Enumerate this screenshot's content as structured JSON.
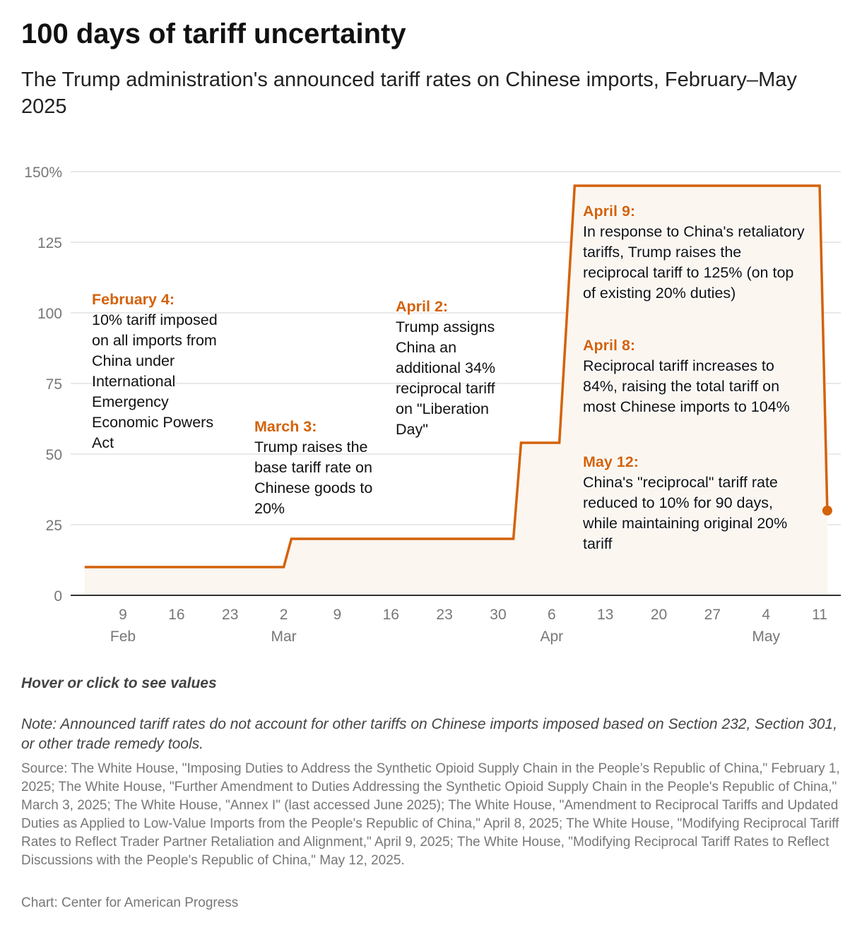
{
  "title": "100 days of tariff uncertainty",
  "subtitle": "The Trump administration's announced tariff rates on Chinese imports, February–May 2025",
  "chart_data": {
    "type": "line",
    "step": true,
    "area_fill": true,
    "colors": {
      "line": "#d4620a",
      "fill": "#fbf6f0",
      "grid": "#e2e2e2",
      "axis": "#333333",
      "tick": "#777777"
    },
    "x": [
      "2025-02-04",
      "2025-03-02",
      "2025-03-03",
      "2025-04-01",
      "2025-04-02",
      "2025-04-07",
      "2025-04-09",
      "2025-05-11",
      "2025-05-12"
    ],
    "y": [
      10,
      10,
      20,
      20,
      54,
      54,
      145,
      145,
      30
    ],
    "ylim": [
      0,
      150
    ],
    "yticks": [
      {
        "v": 0,
        "label": "0"
      },
      {
        "v": 25,
        "label": "25"
      },
      {
        "v": 50,
        "label": "50"
      },
      {
        "v": 75,
        "label": "75"
      },
      {
        "v": 100,
        "label": "100"
      },
      {
        "v": 125,
        "label": "125"
      },
      {
        "v": 150,
        "label": "150%"
      }
    ],
    "xlim": [
      "2025-02-04",
      "2025-05-12"
    ],
    "xticks": [
      {
        "date": "2025-02-09",
        "label": "9",
        "month": "Feb"
      },
      {
        "date": "2025-02-16",
        "label": "16"
      },
      {
        "date": "2025-02-23",
        "label": "23"
      },
      {
        "date": "2025-03-02",
        "label": "2",
        "month": "Mar"
      },
      {
        "date": "2025-03-09",
        "label": "9"
      },
      {
        "date": "2025-03-16",
        "label": "16"
      },
      {
        "date": "2025-03-23",
        "label": "23"
      },
      {
        "date": "2025-03-30",
        "label": "30"
      },
      {
        "date": "2025-04-06",
        "label": "6",
        "month": "Apr"
      },
      {
        "date": "2025-04-13",
        "label": "13"
      },
      {
        "date": "2025-04-20",
        "label": "20"
      },
      {
        "date": "2025-04-27",
        "label": "27"
      },
      {
        "date": "2025-05-04",
        "label": "4",
        "month": "May"
      },
      {
        "date": "2025-05-11",
        "label": "11"
      }
    ],
    "grid": true,
    "end_marker": true,
    "annotations": [
      {
        "head": "February 4:",
        "text": "10% tariff imposed on all imports from China under International Emergency Economic Powers Act"
      },
      {
        "head": "March 3:",
        "text": "Trump raises the base tariff rate on Chinese goods to 20%"
      },
      {
        "head": "April 2:",
        "text": "Trump assigns China an additional 34% reciprocal tariff on \"Liberation Day\""
      },
      {
        "head": "April 9:",
        "text": "In response to China's retaliatory tariffs, Trump raises the reciprocal tariff to 125% (on top of existing 20% duties)"
      },
      {
        "head": "April 8:",
        "text": "Reciprocal tariff increases to 84%, raising the total tariff on most Chinese imports to 104%"
      },
      {
        "head": "May 12:",
        "text": "China's \"reciprocal\" tariff rate reduced to 10% for 90 days, while maintaining original 20% tariff"
      }
    ]
  },
  "hover_hint": "Hover or click to see values",
  "note": "Note: Announced tariff rates do not account for other tariffs on Chinese imports imposed based on Section 232, Section 301, or other trade remedy tools.",
  "source": "Source: The White House, \"Imposing Duties to Address the Synthetic Opioid Supply Chain in the People’s Republic of China,\" February 1, 2025; The White House, \"Further Amendment to Duties Addressing the Synthetic Opioid Supply Chain in the People's Republic of China,\" March 3, 2025; The White House, \"Annex I\" (last accessed June 2025); The White House, \"Amendment to Reciprocal Tariffs and Updated Duties as Applied to Low-Value Imports from the People's Republic of China,\" April 8, 2025; The White House, \"Modifying Reciprocal Tariff Rates to Reflect Trader Partner Retaliation and Alignment,\" April 9, 2025; The White House, \"Modifying Reciprocal Tariff Rates to Reflect Discussions with the People's Republic of China,\" May 12, 2025.",
  "credit": "Chart: Center for American Progress"
}
